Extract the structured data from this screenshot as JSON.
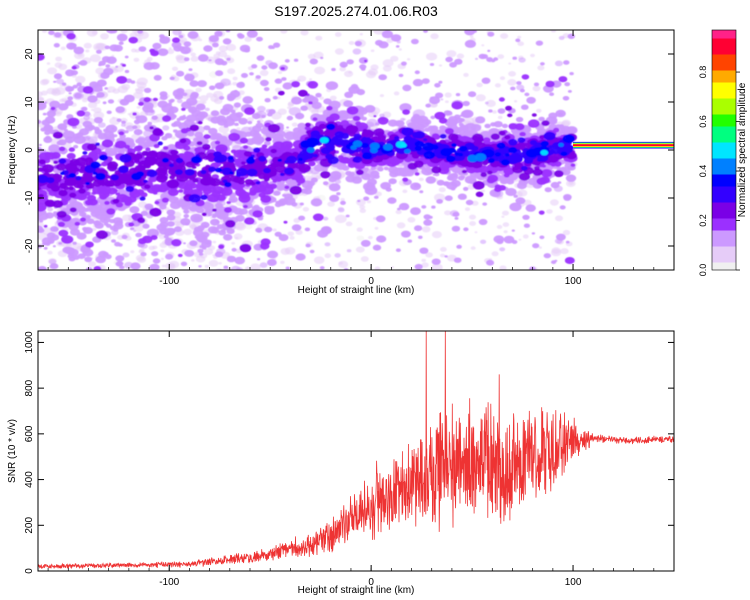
{
  "title": "S197.2025.274.01.06.R03",
  "colors": {
    "snr_line": "#ee3333",
    "axis": "#000000",
    "colormap": [
      "#f0f0f0",
      "#e6ccf8",
      "#cc99ff",
      "#9b30ff",
      "#7a00e6",
      "#3300ff",
      "#0000ff",
      "#0080ff",
      "#00e5ff",
      "#00ff80",
      "#22ff00",
      "#aaff00",
      "#ffff00",
      "#ffaa00",
      "#ff4400",
      "#ff0033",
      "#ff2288"
    ]
  },
  "chart_data": [
    {
      "type": "heatmap",
      "name": "spectrogram",
      "xlabel": "Height of straight line (km)",
      "ylabel": "Frequency (Hz)",
      "xlim": [
        -165,
        150
      ],
      "ylim": [
        -25,
        25
      ],
      "x_ticks": [
        -100,
        0,
        100
      ],
      "y_ticks": [
        -20,
        -10,
        0,
        10,
        20
      ],
      "colorbar": {
        "label": "Normalized spectral amplitude",
        "range": [
          0.0,
          0.97
        ],
        "ticks": [
          "0.0",
          "0.2",
          "0.4",
          "0.6",
          "0.8"
        ]
      },
      "ridge_path": [
        [
          -165,
          -6
        ],
        [
          -100,
          -4
        ],
        [
          -70,
          -5
        ],
        [
          -50,
          -4
        ],
        [
          -35,
          -2
        ],
        [
          -28,
          2
        ],
        [
          -15,
          2
        ],
        [
          0,
          0
        ],
        [
          20,
          1
        ],
        [
          50,
          -1
        ],
        [
          75,
          -1
        ],
        [
          90,
          0
        ],
        [
          100,
          1
        ],
        [
          150,
          1
        ]
      ],
      "steady_band": {
        "x_range": [
          100,
          150
        ],
        "frequency": 1,
        "amplitude": 0.9
      }
    },
    {
      "type": "line",
      "name": "snr",
      "xlabel": "Height of straight line (km)",
      "ylabel": "SNR (10 * v/v)",
      "xlim": [
        -165,
        150
      ],
      "ylim": [
        0,
        1050
      ],
      "x_ticks": [
        -100,
        0,
        100
      ],
      "y_ticks": [
        0,
        200,
        400,
        600,
        800,
        1000
      ],
      "trend": {
        "x": [
          -165,
          -120,
          -90,
          -70,
          -50,
          -40,
          -30,
          -20,
          -10,
          0,
          10,
          20,
          30,
          40,
          50,
          60,
          70,
          80,
          90,
          100,
          110,
          120,
          130,
          140,
          150
        ],
        "mean": [
          20,
          25,
          30,
          50,
          70,
          100,
          110,
          150,
          220,
          300,
          330,
          380,
          430,
          470,
          480,
          460,
          470,
          500,
          520,
          560,
          580,
          575,
          570,
          575,
          575
        ],
        "spread": [
          10,
          10,
          15,
          20,
          30,
          40,
          50,
          80,
          110,
          150,
          170,
          200,
          230,
          260,
          260,
          250,
          240,
          220,
          180,
          100,
          20,
          15,
          15,
          15,
          15
        ]
      },
      "peak_values": [
        1050,
        1050,
        860
      ]
    }
  ]
}
